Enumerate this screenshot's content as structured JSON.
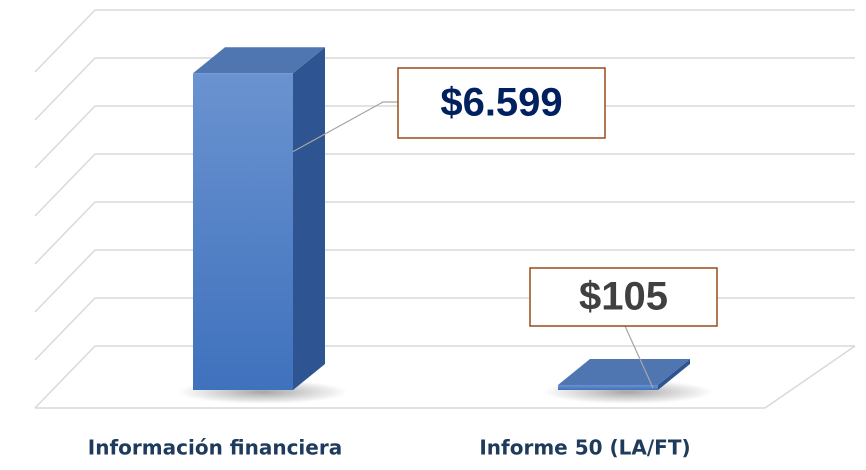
{
  "chart_data": {
    "type": "bar3d",
    "categories": [
      "Información financiera",
      "Informe 50 (LA/FT)"
    ],
    "values": [
      6599,
      105
    ],
    "value_labels": [
      "$6.599",
      "$105"
    ],
    "value_label_colors": [
      "#002060",
      "#404040"
    ],
    "color": "#4a7cc4",
    "ylim": [
      0,
      7000
    ],
    "yticks": [
      0,
      1000,
      2000,
      3000,
      4000,
      5000,
      6000,
      7000
    ],
    "grid": true
  }
}
